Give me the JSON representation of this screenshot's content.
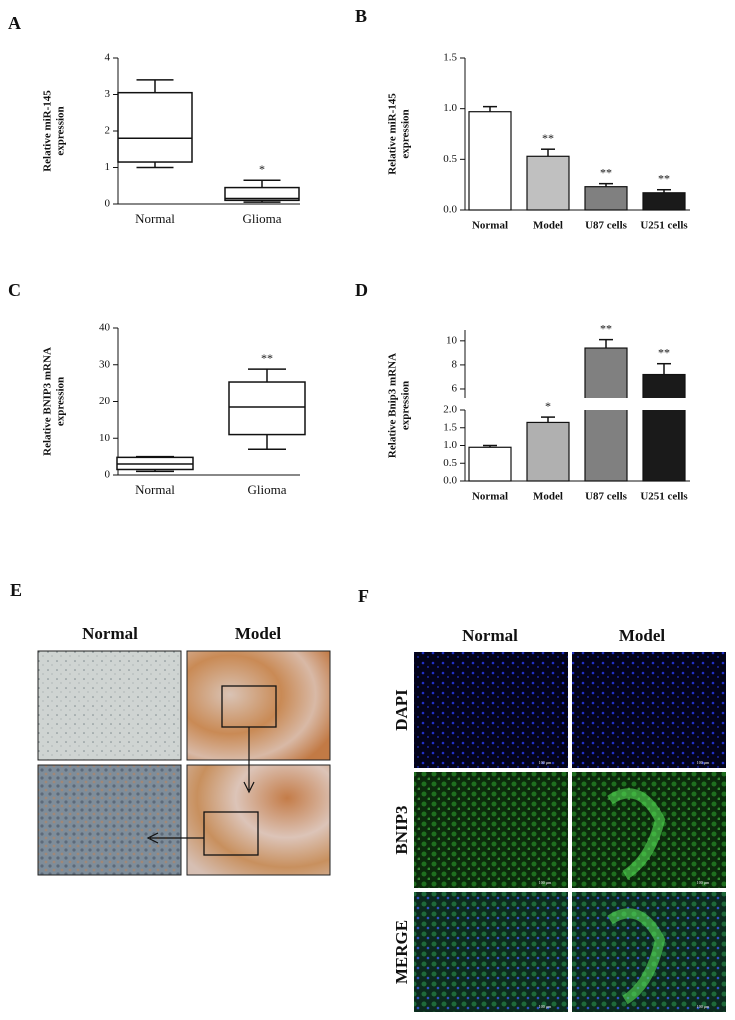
{
  "chart_data": [
    {
      "type": "box",
      "label": "A",
      "ylabel": [
        "Relative miR-145",
        "expression"
      ],
      "categories": [
        "Normal",
        "Glioma"
      ],
      "min": [
        1.0,
        0.05
      ],
      "q1": [
        1.15,
        0.1
      ],
      "median": [
        1.8,
        0.15
      ],
      "q3": [
        3.05,
        0.45
      ],
      "max": [
        3.4,
        0.65
      ],
      "ylim": [
        0,
        4
      ],
      "yticks": [
        0,
        1,
        2,
        3,
        4
      ],
      "annotations": [
        {
          "category": "Glioma",
          "text": "*"
        }
      ]
    },
    {
      "type": "bar",
      "label": "B",
      "ylabel": [
        "Relative miR-145",
        "expression"
      ],
      "categories": [
        "Normal",
        "Model",
        "U87 cells",
        "U251 cells"
      ],
      "values": [
        0.97,
        0.53,
        0.23,
        0.17
      ],
      "errors": [
        0.05,
        0.07,
        0.03,
        0.03
      ],
      "colors": [
        "#ffffff",
        "#c0c0c0",
        "#808080",
        "#1a1a1a"
      ],
      "ylim": [
        0,
        1.5
      ],
      "yticks": [
        {
          "value": 0,
          "label": "0.0"
        },
        {
          "value": 0.5,
          "label": "0.5"
        },
        {
          "value": 1,
          "label": "1.0"
        },
        {
          "value": 1.5,
          "label": "1.5"
        }
      ],
      "annotations": [
        {
          "category": "Model",
          "text": "**"
        },
        {
          "category": "U87 cells",
          "text": "**"
        },
        {
          "category": "U251 cells",
          "text": "**"
        }
      ]
    },
    {
      "type": "box",
      "label": "C",
      "ylabel": [
        "Relative BNIP3 mRNA",
        "expression"
      ],
      "categories": [
        "Normal",
        "Glioma"
      ],
      "min": [
        1,
        7
      ],
      "q1": [
        1.5,
        11
      ],
      "median": [
        3,
        18.5
      ],
      "q3": [
        4.8,
        25.3
      ],
      "max": [
        5,
        28.8
      ],
      "ylim": [
        0,
        40
      ],
      "yticks": [
        0,
        10,
        20,
        30,
        40
      ],
      "annotations": [
        {
          "category": "Glioma",
          "text": "**"
        }
      ]
    },
    {
      "type": "bar",
      "label": "D",
      "ylabel": [
        "Relative Bnip3 mRNA",
        "expression"
      ],
      "categories": [
        "Normal",
        "Model",
        "U87 cells",
        "U251 cells"
      ],
      "values": [
        0.95,
        1.65,
        9.4,
        7.2
      ],
      "errors": [
        0.05,
        0.15,
        0.7,
        0.9
      ],
      "colors": [
        "#ffffff",
        "#b0b0b0",
        "#808080",
        "#1a1a1a"
      ],
      "ylim_segments": [
        [
          0,
          2
        ],
        [
          5.25,
          10.9
        ]
      ],
      "yticks": [
        {
          "value": 0,
          "label": "0.0"
        },
        {
          "value": 0.5,
          "label": "0.5"
        },
        {
          "value": 1,
          "label": "1.0"
        },
        {
          "value": 1.5,
          "label": "1.5"
        },
        {
          "value": 2,
          "label": "2.0"
        },
        6,
        8,
        10
      ],
      "annotations": [
        {
          "category": "Model",
          "text": "*"
        },
        {
          "category": "U87 cells",
          "text": "**"
        },
        {
          "category": "U251 cells",
          "text": "**"
        }
      ]
    }
  ],
  "panels": [
    {
      "label": "E",
      "columns": [
        "Normal",
        "Model"
      ]
    },
    {
      "label": "F",
      "columns": [
        "Normal",
        "Model"
      ],
      "rows": [
        "DAPI",
        "BNIP3",
        "MERGE"
      ],
      "scale_bar": "100 µm"
    }
  ]
}
